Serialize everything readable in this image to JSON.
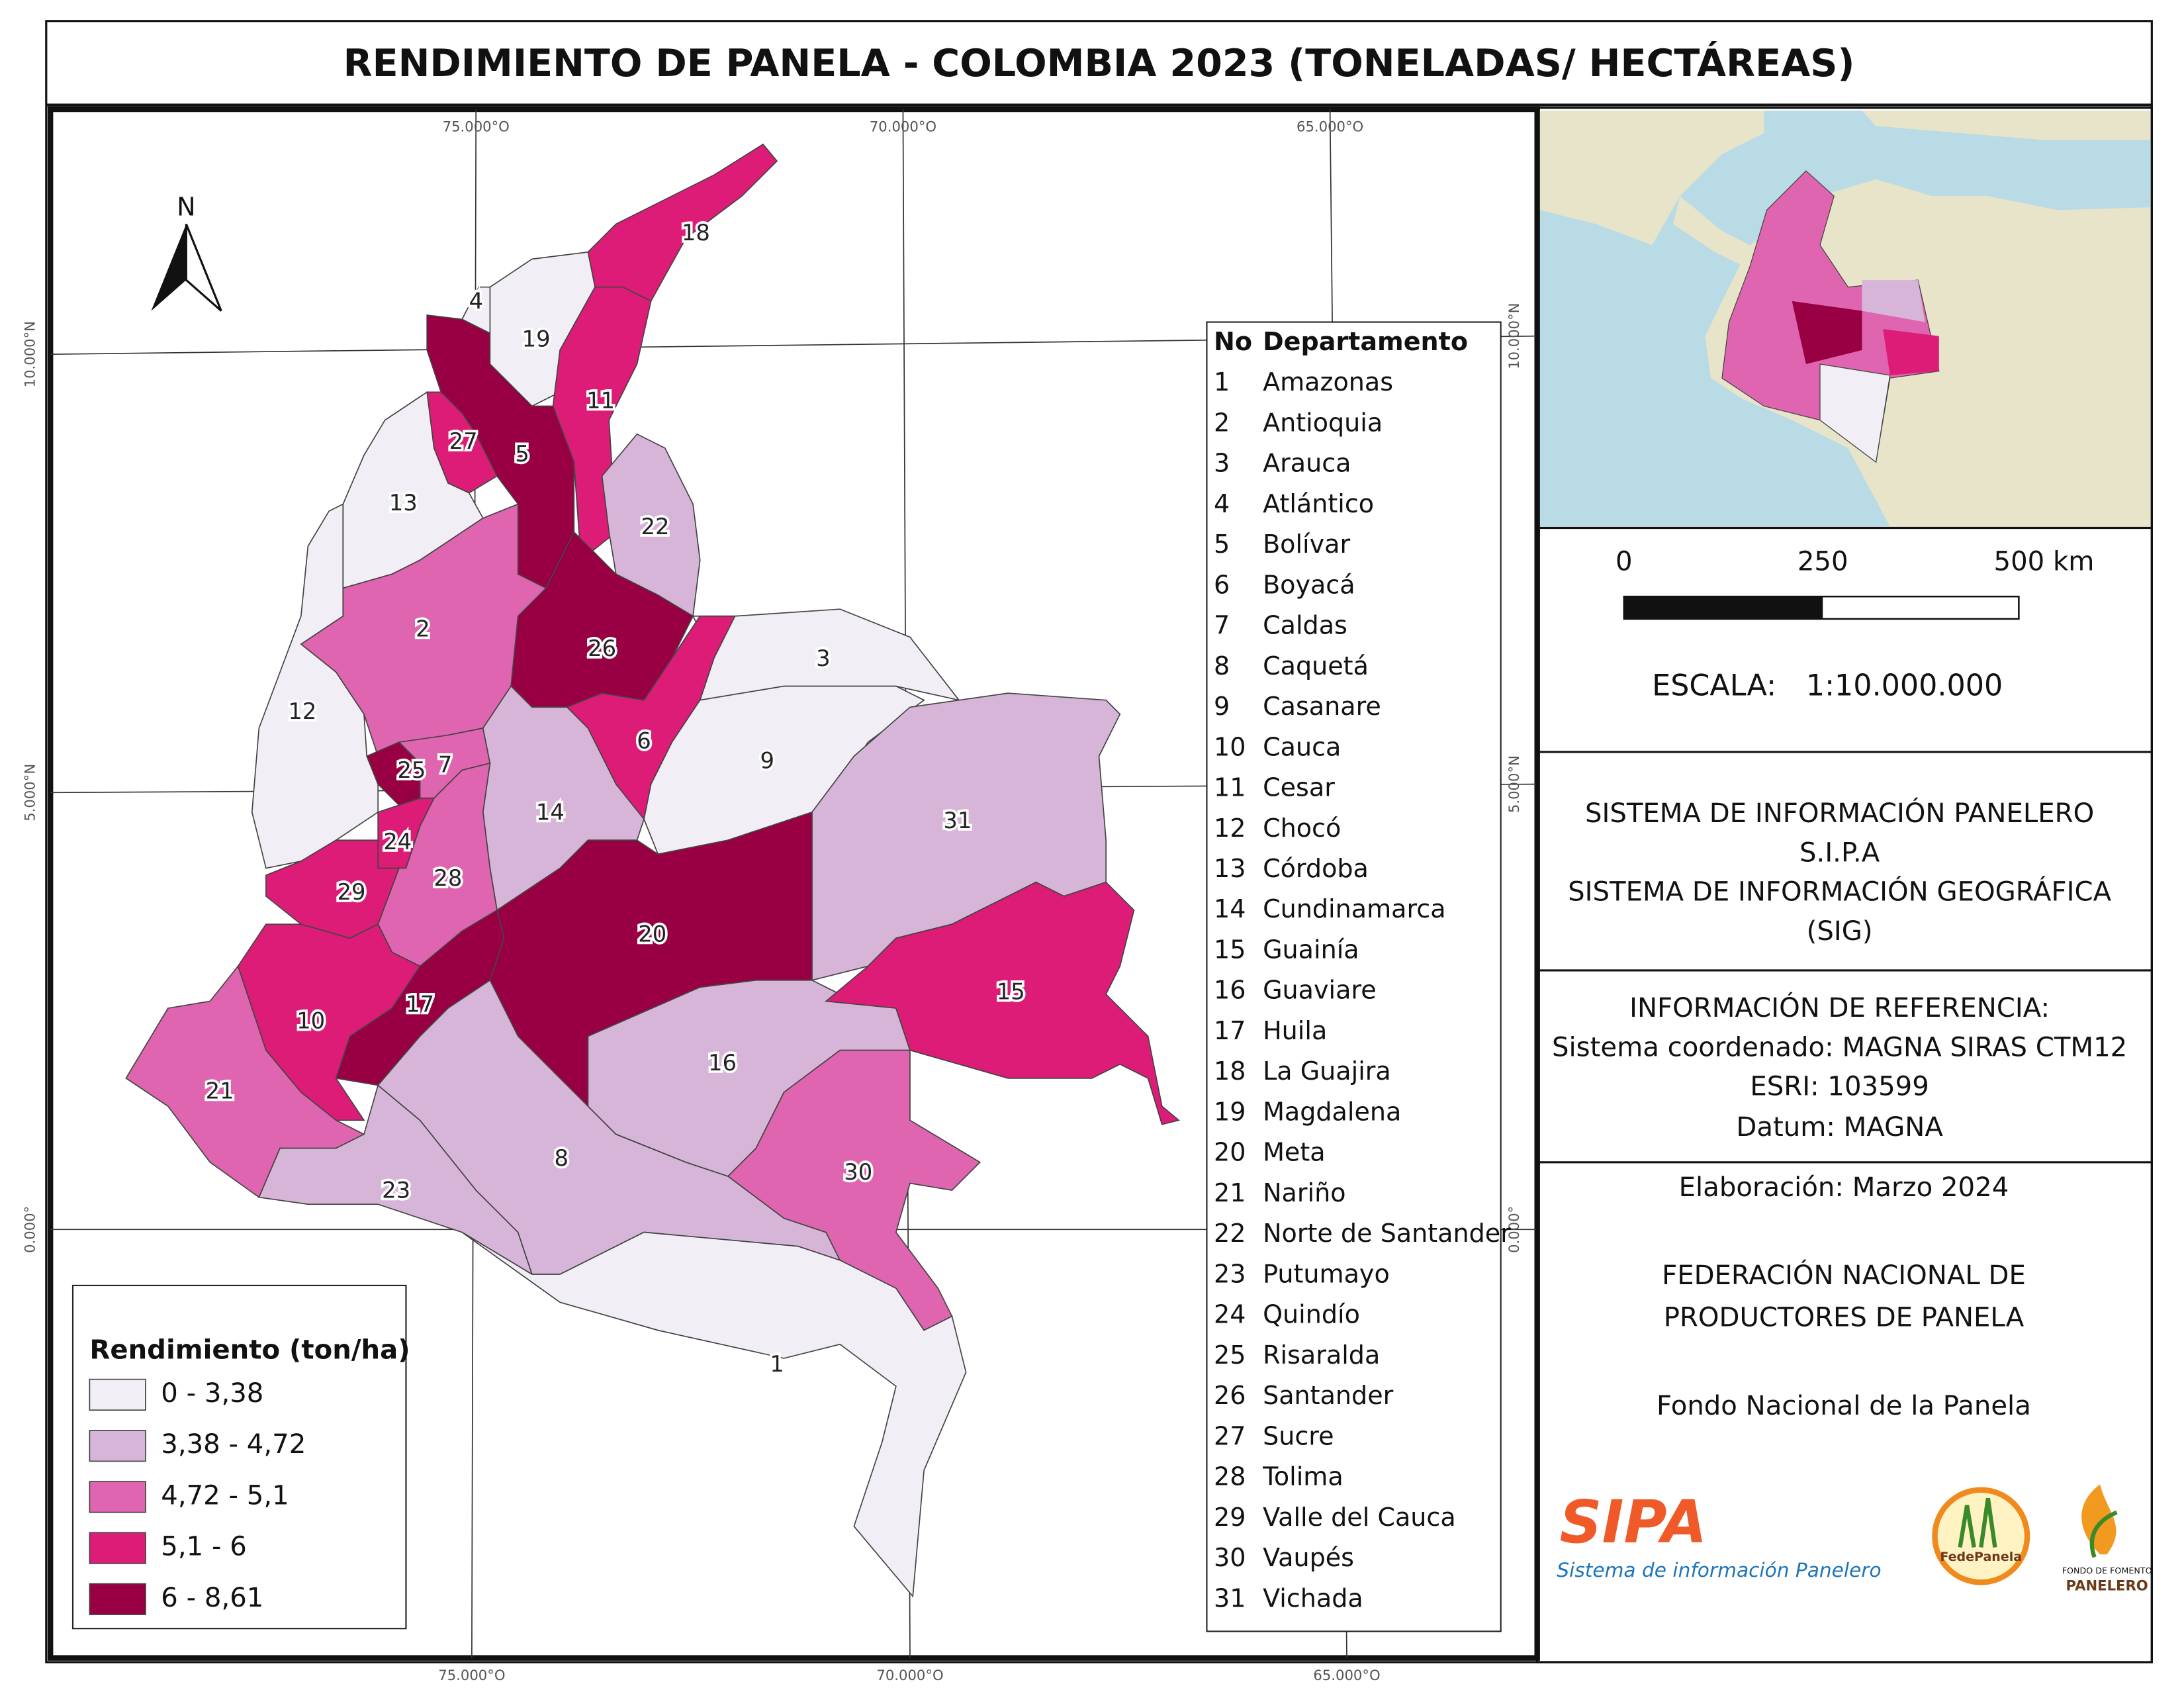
{
  "title": "RENDIMIENTO DE PANELA - COLOMBIA 2023 (TONELADAS/ HECTÁREAS)",
  "map": {
    "north": "N",
    "lon_labels": [
      "75.000°O",
      "70.000°O",
      "65.000°O"
    ],
    "lat_labels": [
      "10.000°N",
      "5.000°N",
      "0.000°"
    ],
    "departments": [
      {
        "no": 1,
        "name": "Amazonas",
        "class": 0
      },
      {
        "no": 2,
        "name": "Antioquia",
        "class": 2
      },
      {
        "no": 3,
        "name": "Arauca",
        "class": 0
      },
      {
        "no": 4,
        "name": "Atlántico",
        "class": 0
      },
      {
        "no": 5,
        "name": "Bolívar",
        "class": 4
      },
      {
        "no": 6,
        "name": "Boyacá",
        "class": 3
      },
      {
        "no": 7,
        "name": "Caldas",
        "class": 2
      },
      {
        "no": 8,
        "name": "Caquetá",
        "class": 1
      },
      {
        "no": 9,
        "name": "Casanare",
        "class": 0
      },
      {
        "no": 10,
        "name": "Cauca",
        "class": 3
      },
      {
        "no": 11,
        "name": "Cesar",
        "class": 3
      },
      {
        "no": 12,
        "name": "Chocó",
        "class": 0
      },
      {
        "no": 13,
        "name": "Córdoba",
        "class": 0
      },
      {
        "no": 14,
        "name": "Cundinamarca",
        "class": 1
      },
      {
        "no": 15,
        "name": "Guainía",
        "class": 3
      },
      {
        "no": 16,
        "name": "Guaviare",
        "class": 1
      },
      {
        "no": 17,
        "name": "Huila",
        "class": 4
      },
      {
        "no": 18,
        "name": "La Guajira",
        "class": 3
      },
      {
        "no": 19,
        "name": "Magdalena",
        "class": 0
      },
      {
        "no": 20,
        "name": "Meta",
        "class": 4
      },
      {
        "no": 21,
        "name": "Nariño",
        "class": 2
      },
      {
        "no": 22,
        "name": "Norte de Santander",
        "class": 1
      },
      {
        "no": 23,
        "name": "Putumayo",
        "class": 1
      },
      {
        "no": 24,
        "name": "Quindío",
        "class": 3
      },
      {
        "no": 25,
        "name": "Risaralda",
        "class": 4
      },
      {
        "no": 26,
        "name": "Santander",
        "class": 4
      },
      {
        "no": 27,
        "name": "Sucre",
        "class": 3
      },
      {
        "no": 28,
        "name": "Tolima",
        "class": 2
      },
      {
        "no": 29,
        "name": "Valle del Cauca",
        "class": 3
      },
      {
        "no": 30,
        "name": "Vaupés",
        "class": 2
      },
      {
        "no": 31,
        "name": "Vichada",
        "class": 1
      }
    ]
  },
  "table_header": {
    "no": "No",
    "name": "Departamento"
  },
  "legend": {
    "title": "Rendimiento (ton/ha)",
    "classes": [
      {
        "label": "0 - 3,38",
        "color": "#f1eef6"
      },
      {
        "label": "3,38 - 4,72",
        "color": "#d7b5d8"
      },
      {
        "label": "4,72 - 5,1",
        "color": "#df65b0"
      },
      {
        "label": "5,1 - 6",
        "color": "#dd1c77"
      },
      {
        "label": "6 - 8,61",
        "color": "#980043"
      }
    ]
  },
  "scale": {
    "ticks": [
      "0",
      "250",
      "500 km"
    ],
    "label": "ESCALA:",
    "value": "1:10.000.000"
  },
  "info": {
    "system": [
      "SISTEMA DE INFORMACIÓN PANELERO",
      "S.I.P.A",
      "SISTEMA DE INFORMACIÓN GEOGRÁFICA",
      "(SIG)"
    ],
    "reference": [
      "INFORMACIÓN DE REFERENCIA:",
      "Sistema coordenado: MAGNA SIRAS CTM12",
      "ESRI: 103599",
      "Datum: MAGNA"
    ],
    "date": "Elaboración: Marzo 2024",
    "federation": [
      "FEDERACIÓN NACIONAL DE",
      "PRODUCTORES DE PANELA"
    ],
    "fund": "Fondo Nacional de la Panela"
  },
  "logos": {
    "sipa": "SIPA",
    "sipa_subtitle": "Sistema de información Panelero",
    "fedepanela": "FedePanela",
    "fondo_line1": "FONDO DE FOMENTO",
    "fondo_line2": "PANELERO"
  }
}
